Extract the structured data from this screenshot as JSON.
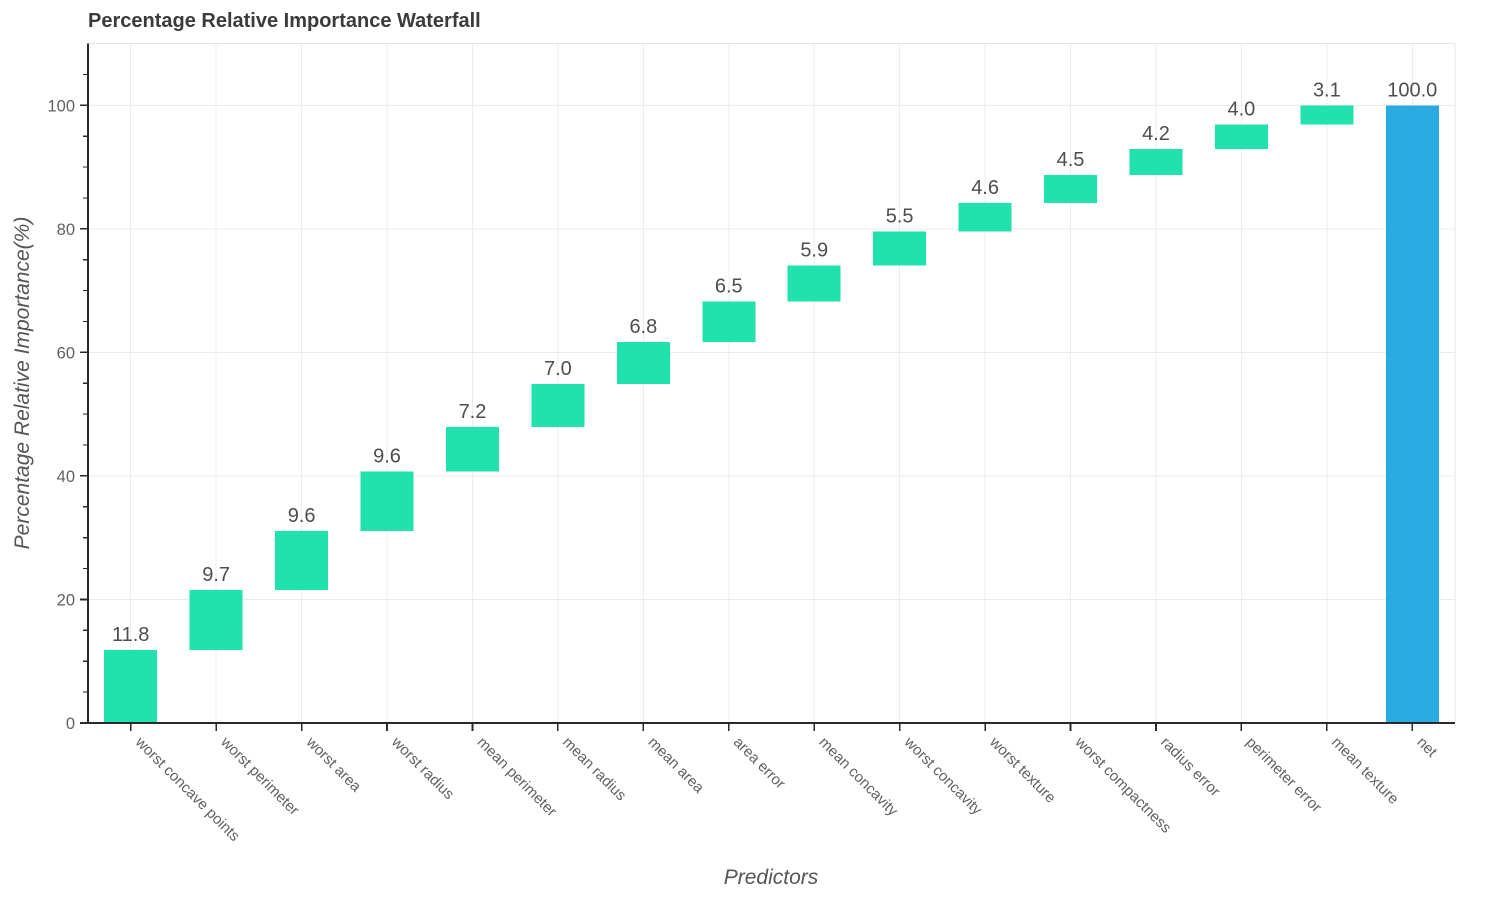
{
  "chart_data": {
    "type": "bar",
    "subtype": "waterfall",
    "title": "Percentage Relative Importance Waterfall",
    "xlabel": "Predictors",
    "ylabel": "Percentage Relative Importance(%)",
    "categories": [
      "worst concave points",
      "worst perimeter",
      "worst area",
      "worst radius",
      "mean perimeter",
      "mean radius",
      "mean area",
      "area error",
      "mean concavity",
      "worst concavity",
      "worst texture",
      "worst compactness",
      "radius error",
      "perimeter error",
      "mean texture",
      "net"
    ],
    "values": [
      11.8,
      9.7,
      9.6,
      9.6,
      7.2,
      7.0,
      6.8,
      6.5,
      5.9,
      5.5,
      4.6,
      4.5,
      4.2,
      4.0,
      3.1,
      100.0
    ],
    "value_labels": [
      "11.8",
      "9.7",
      "9.6",
      "9.6",
      "7.2",
      "7.0",
      "6.8",
      "6.5",
      "5.9",
      "5.5",
      "4.6",
      "4.5",
      "4.2",
      "4.0",
      "3.1",
      "100.0"
    ],
    "measures": [
      "relative",
      "relative",
      "relative",
      "relative",
      "relative",
      "relative",
      "relative",
      "relative",
      "relative",
      "relative",
      "relative",
      "relative",
      "relative",
      "relative",
      "relative",
      "total"
    ],
    "y_ticks": [
      0,
      20,
      40,
      60,
      80,
      100
    ],
    "y_minor_step": 5,
    "ylim": [
      0,
      110
    ],
    "grid": "on",
    "legend": "none",
    "colors": {
      "relative_bar": "#21E2AD",
      "total_bar": "#29ABE2",
      "gridline": "#ECECEC",
      "plot_border": "#E6E6E6",
      "axis_line": "#2A2A2A",
      "tick_label": "#616161",
      "value_label": "#4E4E4E",
      "title_text": "#3B3B3B",
      "axis_title_text": "#555555",
      "background": "#FFFFFF"
    }
  }
}
